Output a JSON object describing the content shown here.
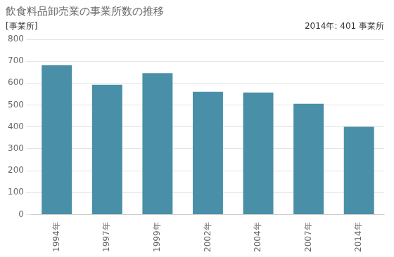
{
  "chart_data": {
    "type": "bar",
    "title": "飲食料品卸売業の事業所数の推移",
    "ylabel": "[事業所]",
    "annotation": "2014年: 401 事業所",
    "categories": [
      "1994年",
      "1997年",
      "1999年",
      "2002年",
      "2004年",
      "2007年",
      "2014年"
    ],
    "values": [
      681,
      592,
      645,
      560,
      557,
      506,
      401
    ],
    "color": "#4a8fa8",
    "ylim": [
      0,
      800
    ],
    "yticks": [
      0,
      100,
      200,
      300,
      400,
      500,
      600,
      700,
      800
    ],
    "grid": true
  }
}
